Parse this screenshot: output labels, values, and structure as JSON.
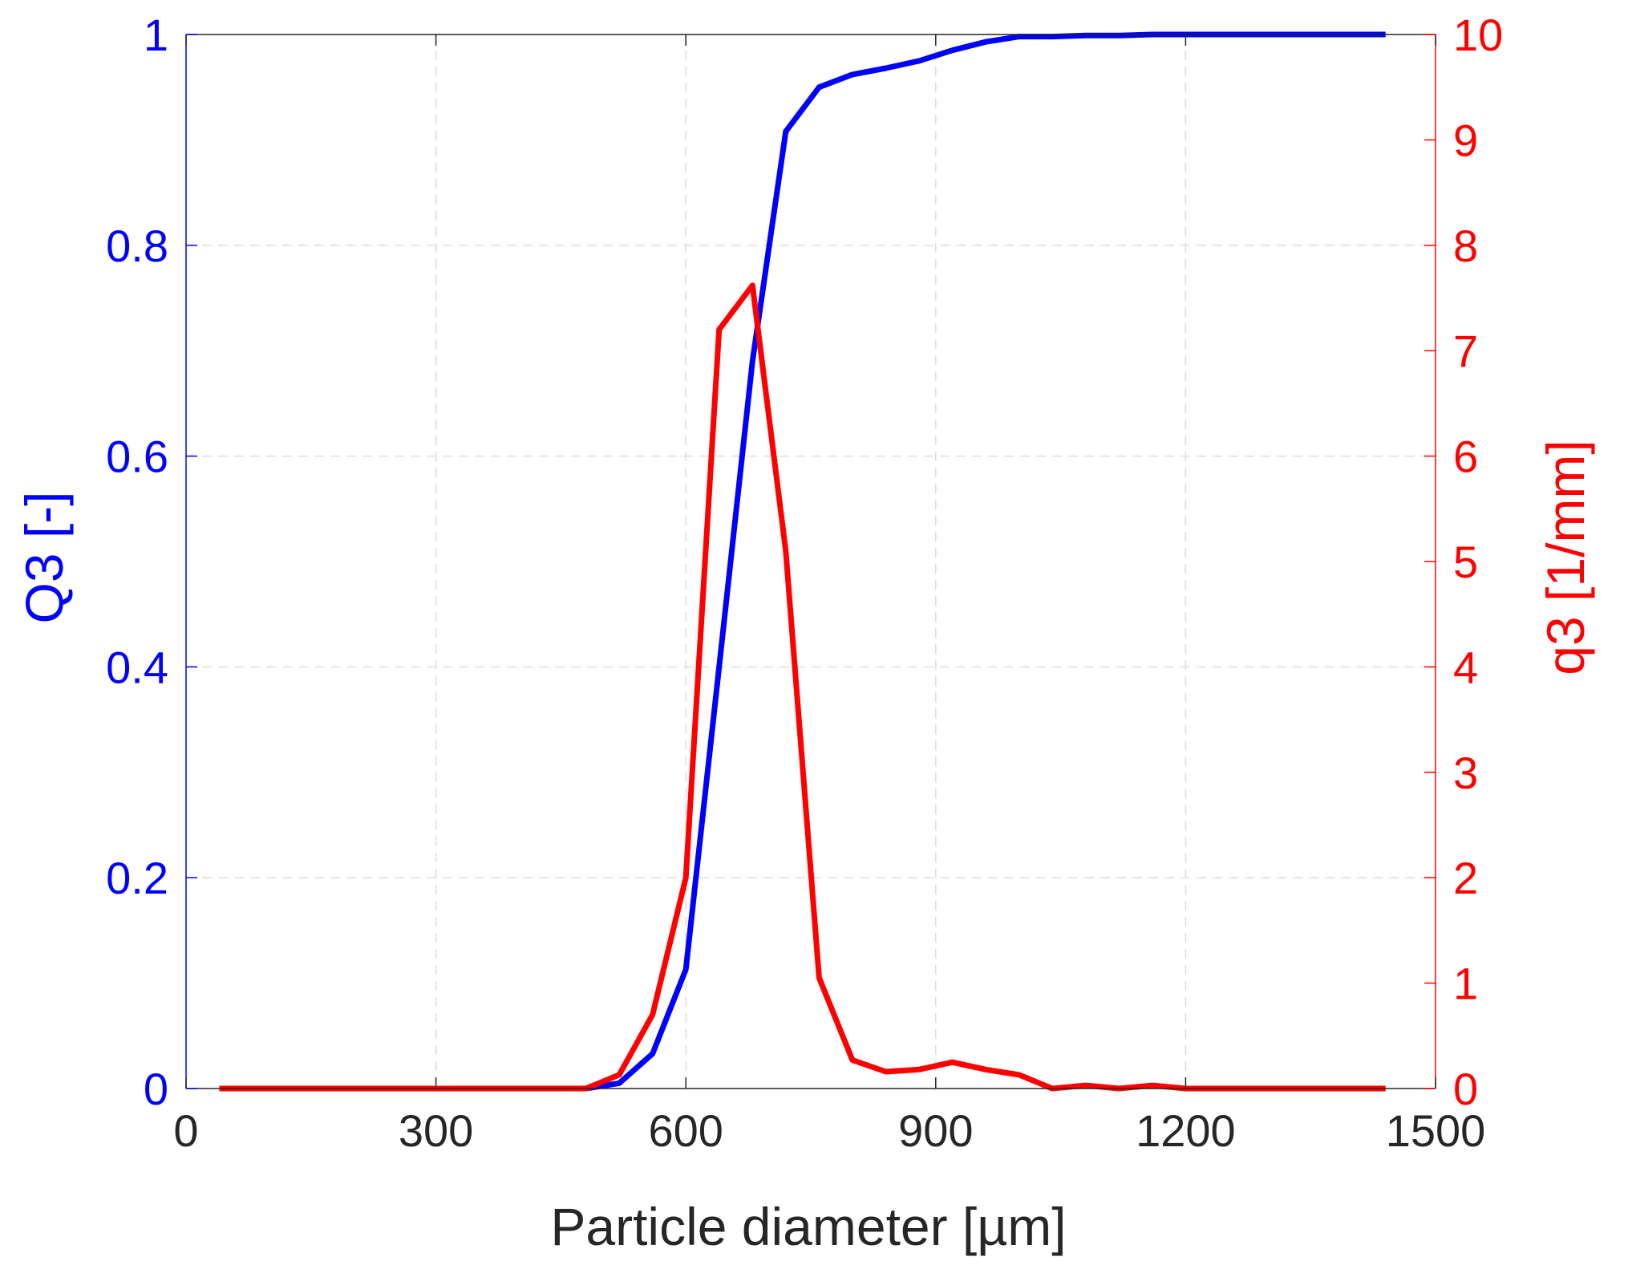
{
  "chart_data": {
    "type": "line",
    "xlabel": "Particle diameter [µm]",
    "ylabel_left": "Q3 [-]",
    "ylabel_right": "q3 [1/mm]",
    "xlim": [
      0,
      1500
    ],
    "ylim_left": [
      0,
      1
    ],
    "ylim_right": [
      0,
      10
    ],
    "x_ticks": [
      0,
      300,
      600,
      900,
      1200,
      1500
    ],
    "x_tick_labels": [
      "0",
      "300",
      "600",
      "900",
      "1200",
      "1500"
    ],
    "y_left_ticks": [
      0,
      0.2,
      0.4,
      0.6,
      0.8,
      1
    ],
    "y_left_tick_labels": [
      "0",
      "0.2",
      "0.4",
      "0.6",
      "0.8",
      "1"
    ],
    "y_right_ticks": [
      0,
      1,
      2,
      3,
      4,
      5,
      6,
      7,
      8,
      9,
      10
    ],
    "y_right_tick_labels": [
      "0",
      "1",
      "2",
      "3",
      "4",
      "5",
      "6",
      "7",
      "8",
      "9",
      "10"
    ],
    "grid": true,
    "colors": {
      "left": "#0000ff",
      "right": "#ff0000",
      "x_axis": "#262626",
      "grid": "#dcdcdc"
    },
    "series": [
      {
        "axis": "left",
        "color": "#0000ff",
        "x": [
          40,
          80,
          120,
          160,
          200,
          240,
          280,
          320,
          360,
          400,
          440,
          480,
          520,
          560,
          600,
          640,
          680,
          720,
          760,
          800,
          840,
          880,
          920,
          960,
          1000,
          1040,
          1080,
          1120,
          1160,
          1200,
          1240,
          1280,
          1320,
          1360,
          1400,
          1440
        ],
        "y": [
          0,
          0,
          0,
          0,
          0,
          0,
          0,
          0,
          0,
          0,
          0,
          0,
          0.005,
          0.033,
          0.113,
          0.4,
          0.69,
          0.908,
          0.95,
          0.962,
          0.968,
          0.975,
          0.985,
          0.993,
          0.998,
          0.998,
          0.999,
          0.999,
          1.0,
          1.0,
          1.0,
          1.0,
          1.0,
          1.0,
          1.0,
          1.0
        ]
      },
      {
        "axis": "right",
        "color": "#ff0000",
        "x": [
          40,
          80,
          120,
          160,
          200,
          240,
          280,
          320,
          360,
          400,
          440,
          480,
          520,
          560,
          600,
          640,
          680,
          720,
          760,
          800,
          840,
          880,
          920,
          960,
          1000,
          1040,
          1080,
          1120,
          1160,
          1200,
          1240,
          1280,
          1320,
          1360,
          1400,
          1440
        ],
        "y": [
          0,
          0,
          0,
          0,
          0,
          0,
          0,
          0,
          0,
          0,
          0,
          0,
          0.13,
          0.7,
          2.0,
          7.2,
          7.62,
          5.1,
          1.05,
          0.27,
          0.16,
          0.18,
          0.25,
          0.18,
          0.13,
          0.0,
          0.03,
          0.0,
          0.03,
          0.0,
          0.0,
          0.0,
          0.0,
          0.0,
          0.0,
          0.0
        ]
      }
    ]
  }
}
